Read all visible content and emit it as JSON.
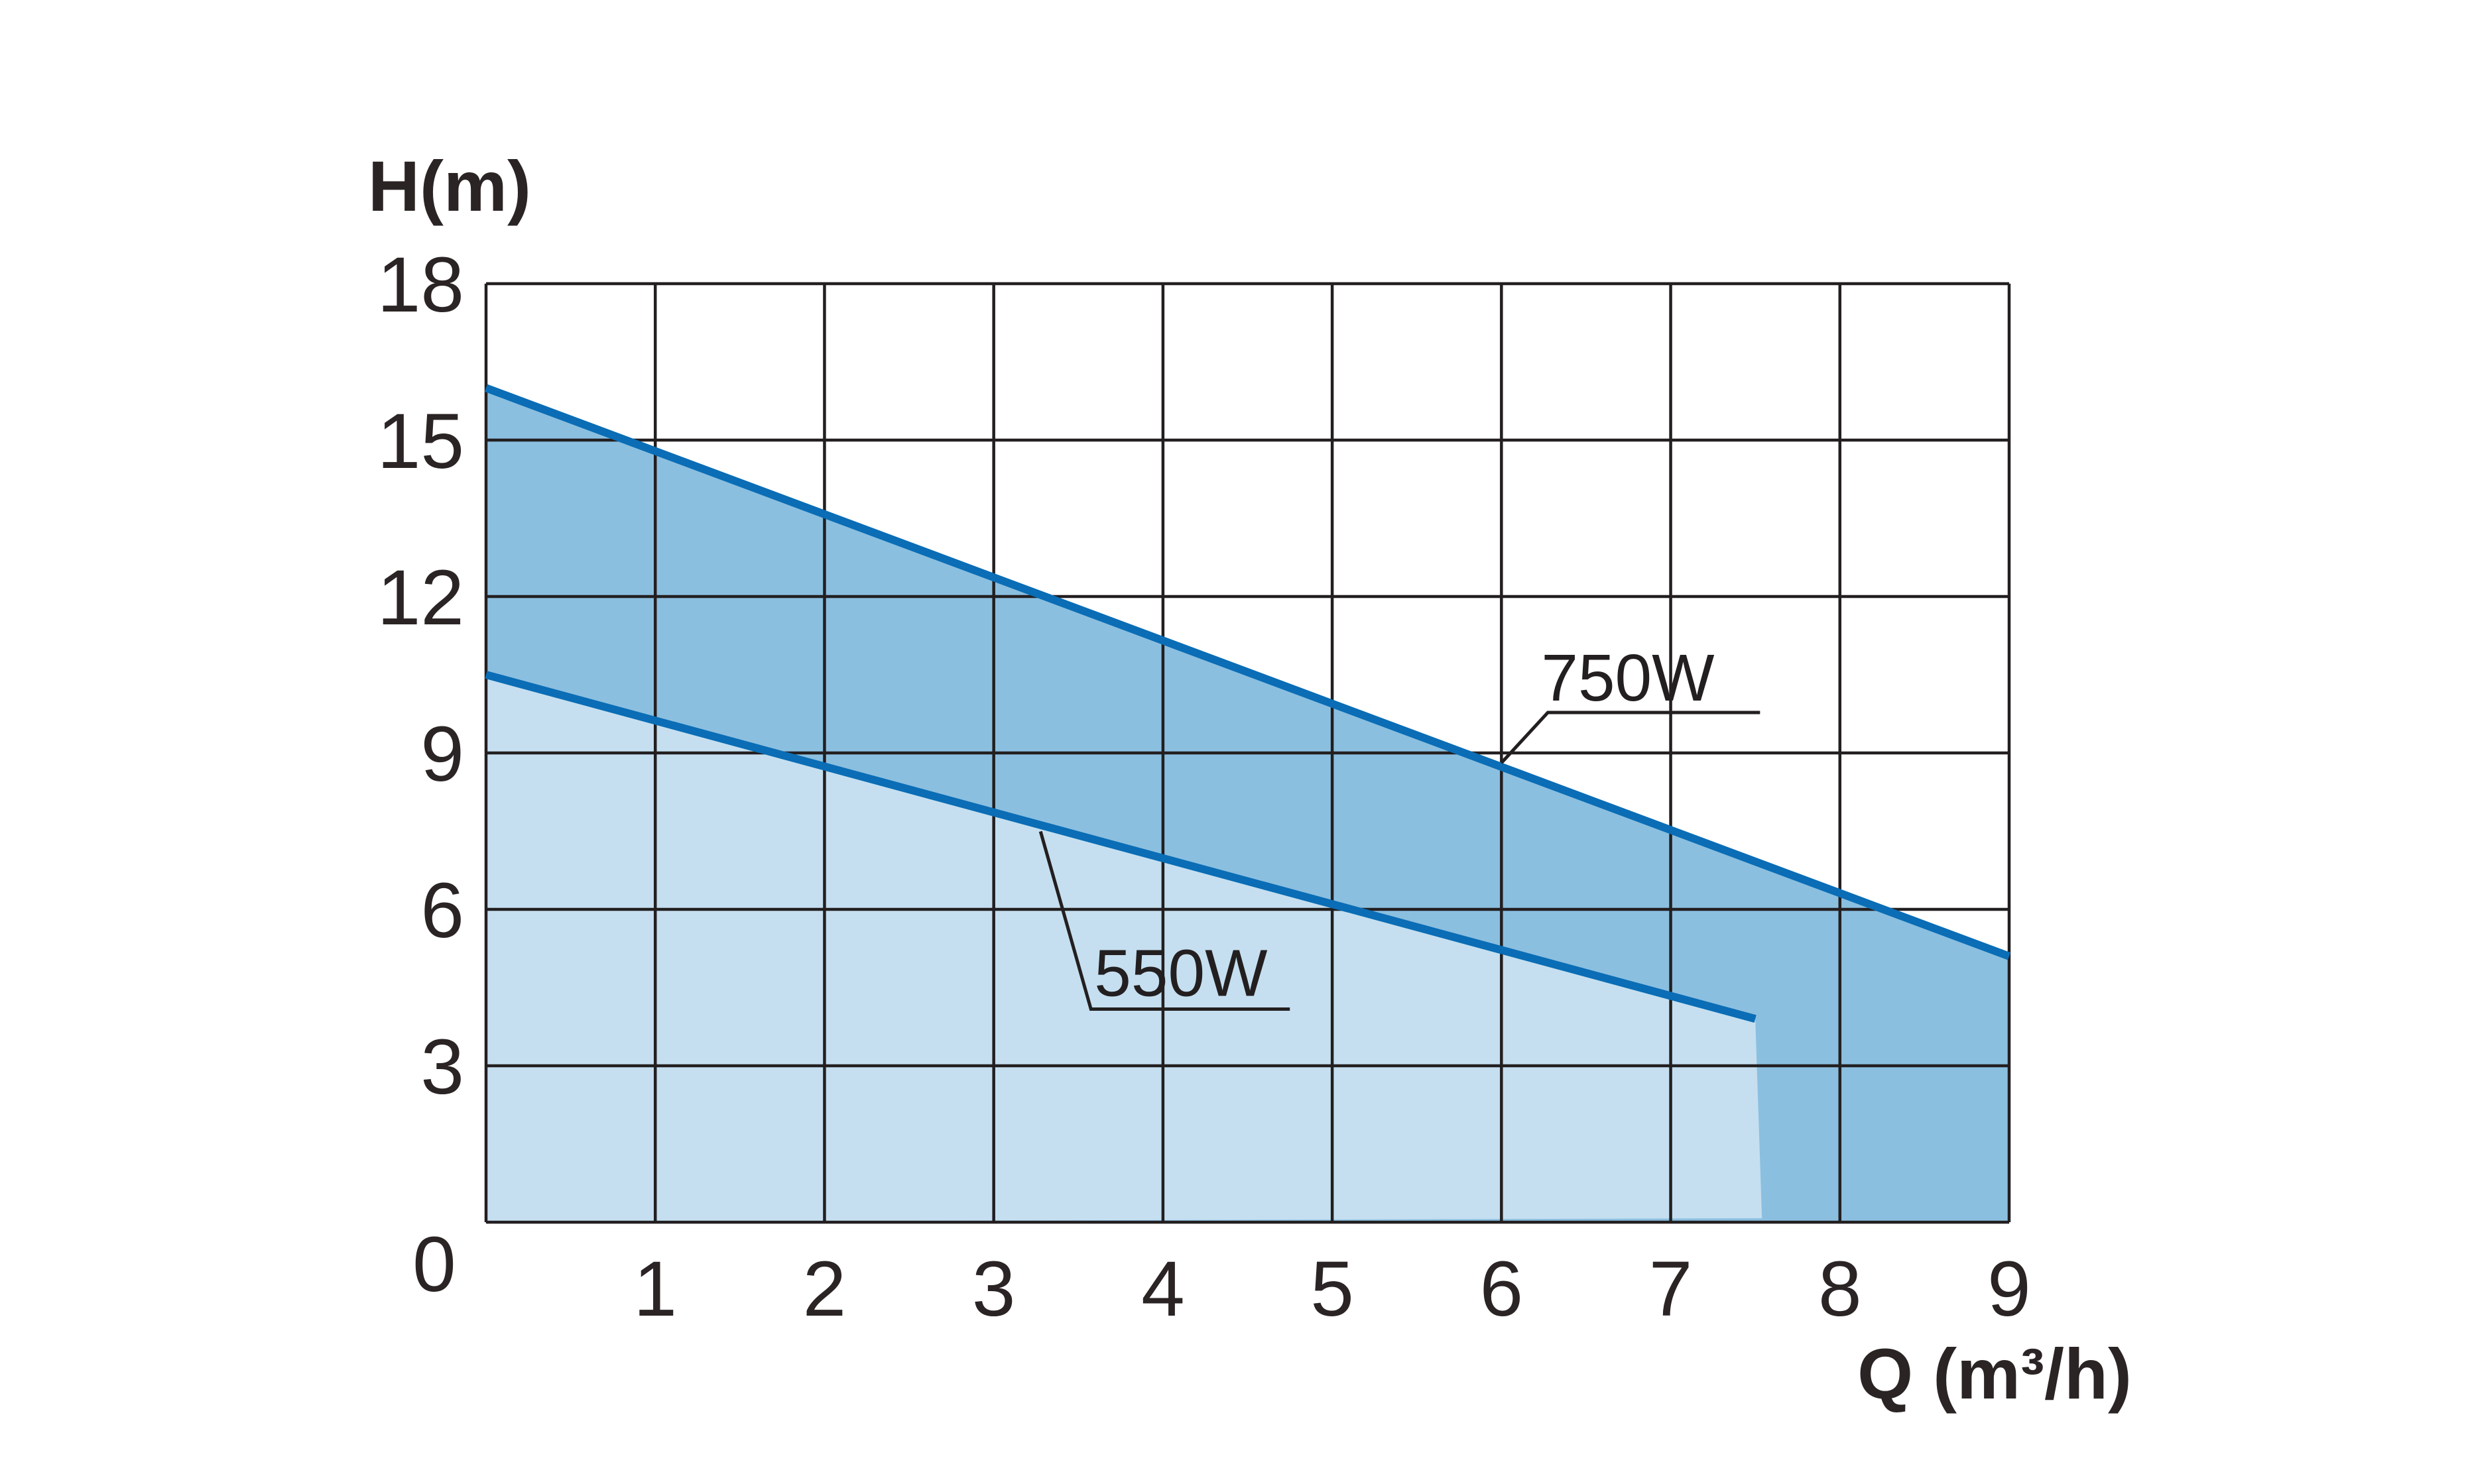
{
  "chart_data": {
    "type": "area",
    "title": "",
    "ylabel": "H(m)",
    "xlabel": "Q (m³/h)",
    "x_ticks": [
      "1",
      "2",
      "3",
      "4",
      "5",
      "6",
      "7",
      "8",
      "9"
    ],
    "y_ticks": [
      "18",
      "15",
      "12",
      "9",
      "6",
      "3"
    ],
    "origin_label": "0",
    "xlim": [
      0,
      9
    ],
    "ylim": [
      0,
      18
    ],
    "grid": true,
    "colors": {
      "line": "#0a6db5",
      "band_upper": "#8bbfe0",
      "band_lower": "#c5dff0",
      "grid": "#231f20"
    },
    "series": [
      {
        "name": "750W",
        "x": [
          0,
          9
        ],
        "y": [
          16.0,
          5.1
        ]
      },
      {
        "name": "550W",
        "x": [
          0,
          7.5
        ],
        "y": [
          10.5,
          3.9
        ]
      }
    ]
  }
}
